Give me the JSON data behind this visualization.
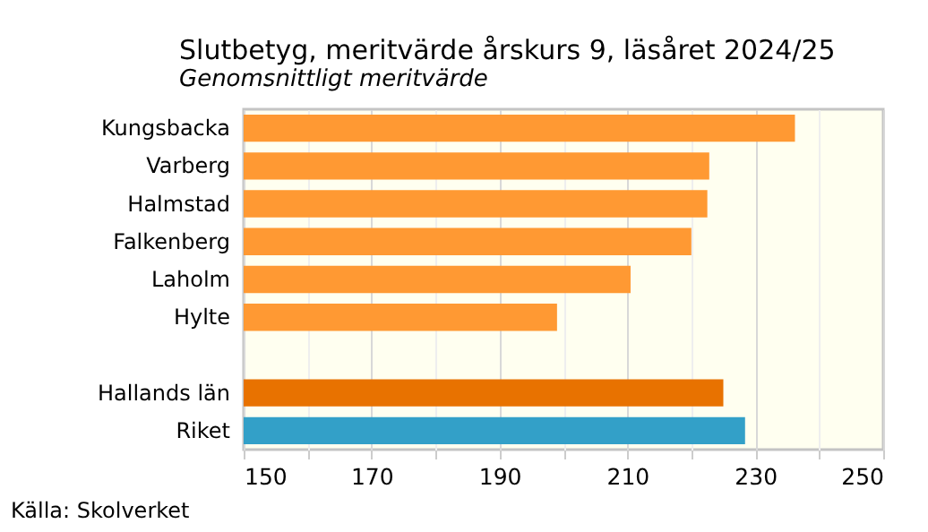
{
  "chart_data": {
    "type": "bar",
    "orientation": "horizontal",
    "title": "Slutbetyg, meritvärde årskurs 9, läsåret 2024/25",
    "subtitle": "Genomsnittligt meritvärde",
    "categories": [
      "Kungsbacka",
      "Varberg",
      "Halmstad",
      "Falkenberg",
      "Laholm",
      "Hylte",
      null,
      "Hallands län",
      "Riket"
    ],
    "values": [
      236.2,
      222.8,
      222.5,
      220.0,
      210.5,
      199.0,
      null,
      225.0,
      228.4
    ],
    "colors": [
      "#ff9933",
      "#ff9933",
      "#ff9933",
      "#ff9933",
      "#ff9933",
      "#ff9933",
      "#ff9933",
      "#e87200",
      "#33a0c8"
    ],
    "xlim": [
      150,
      250
    ],
    "xticks": [
      150,
      {
        "value": 160,
        "label": null
      },
      170,
      {
        "value": 180,
        "label": null
      },
      190,
      {
        "value": 200,
        "label": null
      },
      210,
      {
        "value": 220,
        "label": null
      },
      230,
      {
        "value": 240,
        "label": null
      },
      250
    ],
    "grid": true,
    "annotations": [
      "Källa: Skolverket"
    ]
  }
}
